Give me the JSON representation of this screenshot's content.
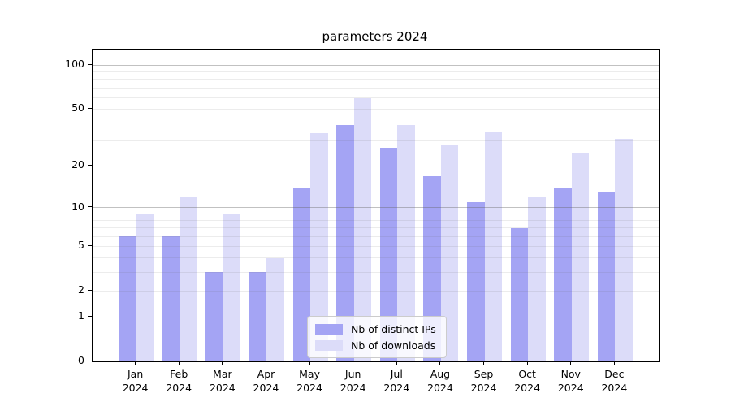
{
  "title": "parameters 2024",
  "chart_data": {
    "type": "bar",
    "title": "parameters 2024",
    "y_scale": "log1p",
    "ylim": [
      0,
      128
    ],
    "yticks": [
      0,
      1,
      2,
      5,
      10,
      20,
      50,
      100
    ],
    "major_gridlines": [
      1,
      10,
      100
    ],
    "minor_gridlines": [
      2,
      3,
      4,
      5,
      6,
      7,
      8,
      9,
      20,
      30,
      40,
      50,
      60,
      70,
      80,
      90
    ],
    "grid": true,
    "legend_position": "lower center",
    "categories": [
      {
        "month": "Jan",
        "year": "2024"
      },
      {
        "month": "Feb",
        "year": "2024"
      },
      {
        "month": "Mar",
        "year": "2024"
      },
      {
        "month": "Apr",
        "year": "2024"
      },
      {
        "month": "May",
        "year": "2024"
      },
      {
        "month": "Jun",
        "year": "2024"
      },
      {
        "month": "Jul",
        "year": "2024"
      },
      {
        "month": "Aug",
        "year": "2024"
      },
      {
        "month": "Sep",
        "year": "2024"
      },
      {
        "month": "Oct",
        "year": "2024"
      },
      {
        "month": "Nov",
        "year": "2024"
      },
      {
        "month": "Dec",
        "year": "2024"
      }
    ],
    "series": [
      {
        "name": "Nb of distinct IPs",
        "color": "#a4a4f4",
        "values": [
          6,
          6,
          3,
          3,
          14,
          39,
          27,
          17,
          11,
          7,
          14,
          13
        ]
      },
      {
        "name": "Nb of downloads",
        "color": "#dcdcf9",
        "values": [
          9,
          12,
          9,
          4,
          34,
          59,
          39,
          28,
          35,
          12,
          25,
          31
        ]
      }
    ]
  }
}
